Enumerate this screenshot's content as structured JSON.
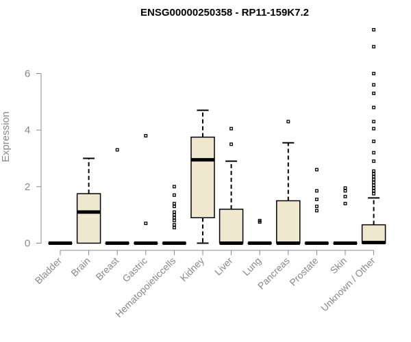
{
  "chart_data": {
    "type": "boxplot",
    "title": "ENSG00000250358 - RP11-159K7.2",
    "xlabel": "",
    "ylabel": "Expression",
    "ylim": [
      0,
      7.8
    ],
    "yticks": [
      0,
      2,
      4,
      6
    ],
    "box_color": "#efe7ce",
    "categories": [
      "Bladder",
      "Brain",
      "Breast",
      "Gastric",
      "Hematopoieticcells",
      "Kidney",
      "Liver",
      "Lung",
      "Pancreas",
      "Prostate",
      "Skin",
      "Unknown / Other"
    ],
    "boxes": [
      {
        "category": "Bladder",
        "min": 0,
        "q1": 0,
        "median": 0,
        "q3": 0,
        "max": 0,
        "outliers": []
      },
      {
        "category": "Brain",
        "min": 0,
        "q1": 0,
        "median": 1.1,
        "q3": 1.75,
        "max": 3.0,
        "outliers": []
      },
      {
        "category": "Breast",
        "min": 0,
        "q1": 0,
        "median": 0,
        "q3": 0,
        "max": 0,
        "outliers": [
          3.3
        ]
      },
      {
        "category": "Gastric",
        "min": 0,
        "q1": 0,
        "median": 0,
        "q3": 0,
        "max": 0,
        "outliers": [
          0.7,
          3.8
        ]
      },
      {
        "category": "Hematopoieticcells",
        "min": 0,
        "q1": 0,
        "median": 0,
        "q3": 0,
        "max": 0,
        "outliers": [
          0.55,
          0.65,
          0.8,
          0.9,
          1.0,
          1.1,
          1.3,
          1.4,
          1.7,
          2.0
        ]
      },
      {
        "category": "Kidney",
        "min": 0,
        "q1": 0.9,
        "median": 2.95,
        "q3": 3.75,
        "max": 4.7,
        "outliers": []
      },
      {
        "category": "Liver",
        "min": 0,
        "q1": 0,
        "median": 0,
        "q3": 1.2,
        "max": 2.9,
        "outliers": [
          3.5,
          4.05
        ]
      },
      {
        "category": "Lung",
        "min": 0,
        "q1": 0,
        "median": 0,
        "q3": 0,
        "max": 0,
        "outliers": [
          0.75,
          0.8
        ]
      },
      {
        "category": "Pancreas",
        "min": 0,
        "q1": 0,
        "median": 0,
        "q3": 1.5,
        "max": 3.55,
        "outliers": [
          4.3
        ]
      },
      {
        "category": "Prostate",
        "min": 0,
        "q1": 0,
        "median": 0,
        "q3": 0,
        "max": 0,
        "outliers": [
          1.15,
          1.3,
          1.55,
          1.85,
          2.6
        ]
      },
      {
        "category": "Skin",
        "min": 0,
        "q1": 0,
        "median": 0,
        "q3": 0,
        "max": 0,
        "outliers": [
          1.4,
          1.65,
          1.85,
          1.95
        ]
      },
      {
        "category": "Unknown / Other",
        "min": 0,
        "q1": 0,
        "median": 0.02,
        "q3": 0.65,
        "max": 1.6,
        "outliers": [
          1.75,
          1.85,
          1.95,
          2.05,
          2.15,
          2.25,
          2.35,
          2.45,
          2.55,
          2.9,
          3.2,
          3.6,
          4.05,
          4.3,
          4.8,
          5.3,
          5.6,
          6.0,
          6.95,
          7.55
        ]
      }
    ]
  }
}
